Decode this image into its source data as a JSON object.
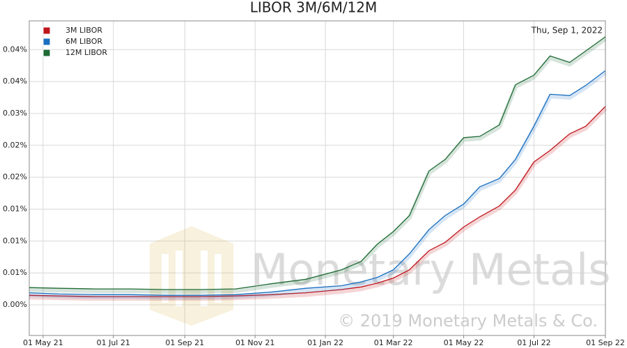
{
  "chart_data": {
    "type": "line",
    "title": "LIBOR 3M/6M/12M",
    "annotation": "Thu, Sep 1, 2022",
    "watermark": "Monetary Metals",
    "watermark_copyright": "© 2019 Monetary Metals & Co.",
    "x": [
      "2021-04-19",
      "2021-05-15",
      "2021-06-15",
      "2021-07-15",
      "2021-08-15",
      "2021-09-15",
      "2021-10-15",
      "2021-11-15",
      "2021-12-15",
      "2022-01-15",
      "2022-02-01",
      "2022-02-15",
      "2022-03-01",
      "2022-03-15",
      "2022-04-01",
      "2022-04-15",
      "2022-05-01",
      "2022-05-15",
      "2022-06-01",
      "2022-06-15",
      "2022-07-01",
      "2022-07-15",
      "2022-08-01",
      "2022-08-15",
      "2022-09-01"
    ],
    "series": [
      {
        "name": "3M LIBOR",
        "color": "#c0141b",
        "values": [
          0.0015,
          0.0014,
          0.0013,
          0.0013,
          0.0013,
          0.0013,
          0.0014,
          0.0016,
          0.0019,
          0.0024,
          0.0028,
          0.0034,
          0.0042,
          0.0055,
          0.0085,
          0.0098,
          0.0122,
          0.0138,
          0.0155,
          0.018,
          0.0224,
          0.0242,
          0.0268,
          0.028,
          0.0311
        ]
      },
      {
        "name": "6M LIBOR",
        "color": "#1a6fc0",
        "values": [
          0.0019,
          0.0017,
          0.0016,
          0.0016,
          0.0015,
          0.0015,
          0.0016,
          0.002,
          0.0026,
          0.003,
          0.0036,
          0.0043,
          0.0055,
          0.008,
          0.0118,
          0.014,
          0.0158,
          0.0185,
          0.0198,
          0.0228,
          0.028,
          0.033,
          0.0328,
          0.0344,
          0.0367
        ]
      },
      {
        "name": "12M LIBOR",
        "color": "#1e6b35",
        "values": [
          0.0027,
          0.0026,
          0.0025,
          0.0025,
          0.0024,
          0.0024,
          0.0025,
          0.0033,
          0.004,
          0.0055,
          0.0068,
          0.0095,
          0.0115,
          0.014,
          0.021,
          0.0228,
          0.0262,
          0.0264,
          0.0282,
          0.0345,
          0.036,
          0.039,
          0.038,
          0.0398,
          0.042
        ]
      }
    ],
    "xlim": [
      "2021-04-19",
      "2022-09-01"
    ],
    "xticks": [
      {
        "value": "2021-05-01",
        "label": "01 May 21"
      },
      {
        "value": "2021-07-01",
        "label": "01 Jul 21"
      },
      {
        "value": "2021-09-01",
        "label": "01 Sep 21"
      },
      {
        "value": "2021-11-01",
        "label": "01 Nov 21"
      },
      {
        "value": "2022-01-01",
        "label": "01 Jan 22"
      },
      {
        "value": "2022-03-01",
        "label": "01 Mar 22"
      },
      {
        "value": "2022-05-01",
        "label": "01 May 22"
      },
      {
        "value": "2022-07-01",
        "label": "01 Jul 22"
      },
      {
        "value": "2022-09-01",
        "label": "01 Sep 22"
      }
    ],
    "ylim": [
      -0.0048,
      0.0445
    ],
    "yticks": [
      {
        "value": 0,
        "label": "0.00%"
      },
      {
        "value": 0.005,
        "label": "0.01%"
      },
      {
        "value": 0.01,
        "label": "0.01%"
      },
      {
        "value": 0.015,
        "label": "0.01%"
      },
      {
        "value": 0.02,
        "label": "0.02%"
      },
      {
        "value": 0.025,
        "label": "0.02%"
      },
      {
        "value": 0.03,
        "label": "0.03%"
      },
      {
        "value": 0.035,
        "label": "0.04%"
      },
      {
        "value": 0.04,
        "label": "0.04%"
      }
    ],
    "grid": true,
    "legend": "top-left"
  }
}
